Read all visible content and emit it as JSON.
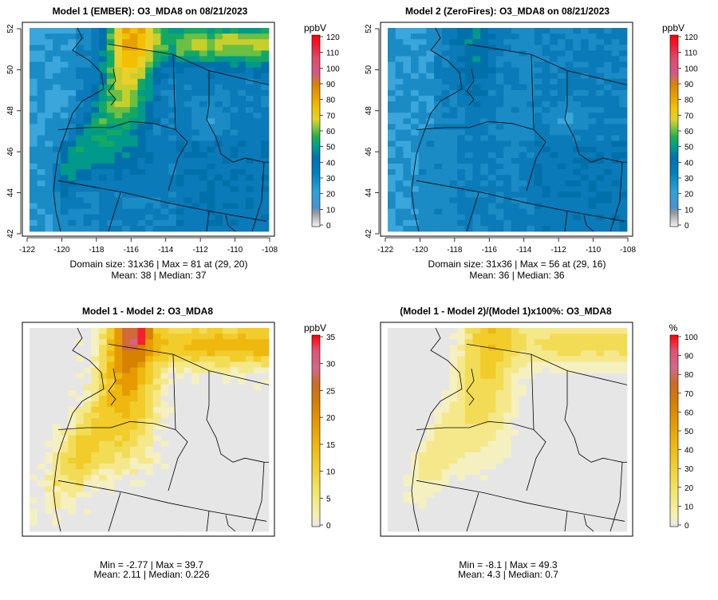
{
  "chart_data": [
    {
      "type": "heatmap",
      "title": "Model 1 (EMBER): O3_MDA8 on 08/21/2023",
      "x_ticks": [
        "-122",
        "-120",
        "-118",
        "-116",
        "-114",
        "-112",
        "-110",
        "-108"
      ],
      "y_ticks": [
        "42",
        "44",
        "46",
        "48",
        "50",
        "52"
      ],
      "colorbar": {
        "unit": "ppbV",
        "ticks": [
          "0",
          "10",
          "20",
          "30",
          "40",
          "50",
          "60",
          "70",
          "80",
          "90",
          "100",
          "110",
          "120"
        ]
      },
      "stats": [
        "Domain size: 31x36 | Max = 81 at (29, 20)",
        "Mean: 38 |  Median: 37"
      ],
      "max": 81,
      "mean": 38,
      "median": 37,
      "colors": [
        "#e6e6e6",
        "#bfbfbf",
        "#8a8a8a",
        "#2f7fc2",
        "#2e9fd9",
        "#1b87b8",
        "#0077b3",
        "#00a089",
        "#21b04b",
        "#86c440",
        "#e1d127",
        "#f0c000",
        "#e8a200",
        "#e07a00",
        "#d6608a",
        "#e8465c",
        "#ff0000"
      ]
    },
    {
      "type": "heatmap",
      "title": "Model 2 (ZeroFires): O3_MDA8 on 08/21/2023",
      "x_ticks": [
        "-122",
        "-120",
        "-118",
        "-116",
        "-114",
        "-112",
        "-110",
        "-108"
      ],
      "y_ticks": [
        "42",
        "44",
        "46",
        "48",
        "50",
        "52"
      ],
      "colorbar": {
        "unit": "ppbV",
        "ticks": [
          "0",
          "10",
          "20",
          "30",
          "40",
          "50",
          "60",
          "70",
          "80",
          "90",
          "100",
          "110",
          "120"
        ]
      },
      "stats": [
        "Domain size: 31x36 | Max = 56 at (29, 16)",
        "Mean: 36 |  Median: 36"
      ],
      "max": 56,
      "mean": 36,
      "median": 36
    },
    {
      "type": "heatmap",
      "title": "Model 1 - Model 2: O3_MDA8",
      "colorbar": {
        "unit": "ppbV",
        "ticks": [
          "0",
          "5",
          "10",
          "15",
          "20",
          "25",
          "30",
          "35"
        ]
      },
      "stats": [
        "Min = -2.77 | Max = 39.7",
        "Mean: 2.11 |  Median: 0.226"
      ],
      "min": -2.77,
      "max": 39.7,
      "mean": 2.11,
      "median": 0.226
    },
    {
      "type": "heatmap",
      "title": "(Model 1 - Model 2)/(Model 1)x100%: O3_MDA8",
      "colorbar": {
        "unit": "%",
        "ticks": [
          "0",
          "10",
          "20",
          "30",
          "40",
          "50",
          "60",
          "70",
          "80",
          "90",
          "100"
        ]
      },
      "stats": [
        "Min = -8.1 | Max = 49.3",
        "Mean: 4.3 |  Median: 0.7"
      ],
      "min": -8.1,
      "max": 49.3,
      "mean": 4.3,
      "median": 0.7
    }
  ]
}
